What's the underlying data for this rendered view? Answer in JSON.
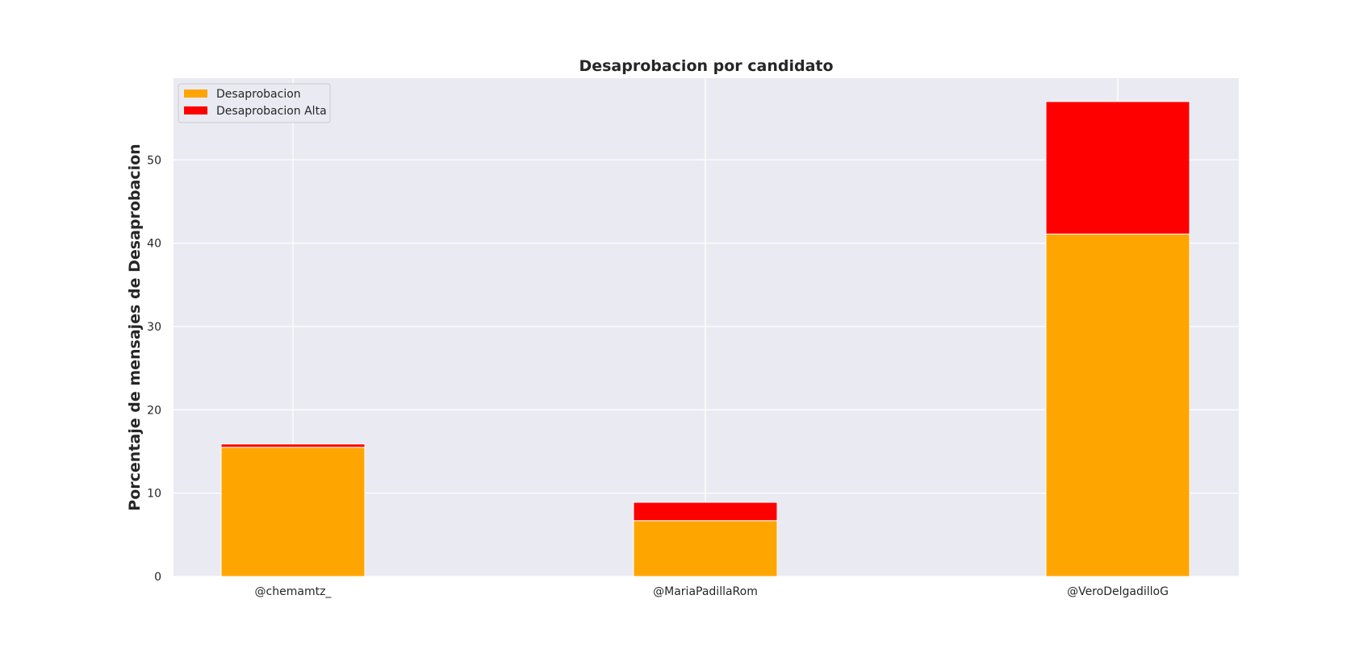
{
  "chart_data": {
    "type": "bar",
    "stacked": true,
    "title": "Desaprobacion por candidato",
    "xlabel": "",
    "ylabel": "Porcentaje de mensajes de Desaprobacion",
    "categories": [
      "@chemamtz_",
      "@MariaPadillaRom",
      "@VeroDelgadilloG"
    ],
    "series": [
      {
        "name": "Desaprobacion",
        "color": "#ffa500",
        "values": [
          15.5,
          6.7,
          41.1
        ]
      },
      {
        "name": "Desaprobacion Alta",
        "color": "#ff0000",
        "values": [
          0.4,
          2.2,
          15.9
        ]
      }
    ],
    "ylim": [
      0,
      59.8
    ],
    "yticks": [
      0,
      10,
      20,
      30,
      40,
      50
    ],
    "grid": true,
    "legend": "top-left",
    "background": "#eaeaf2"
  }
}
